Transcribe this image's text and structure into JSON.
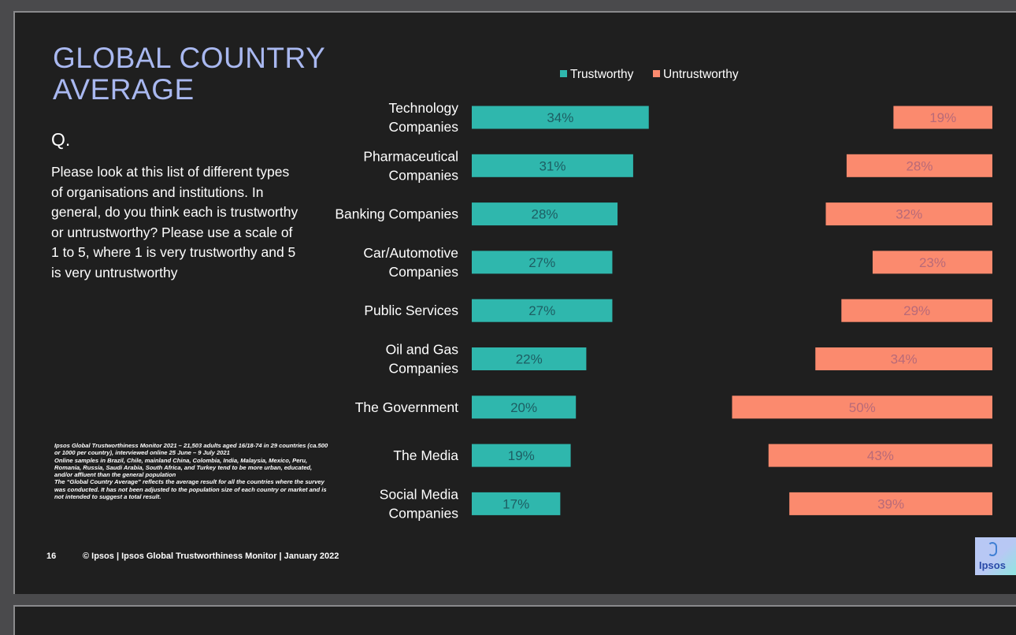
{
  "slide": {
    "title": "GLOBAL COUNTRY AVERAGE",
    "q_label": "Q.",
    "question": "Please look at this list of different types of organisations and institutions. In general, do you think each is trustworthy or untrustworthy?  Please use a scale of 1 to 5, where 1 is very trustworthy and 5 is very untrustworthy",
    "notes": [
      "Ipsos Global Trustworthiness Monitor 2021 – 21,503 adults aged 16/18-74 in 29 countries (ca.500 or 1000 per country), interviewed online 25 June – 9 July 2021",
      "Online samples in Brazil, Chile, mainland China, Colombia, India, Malaysia, Mexico, Peru, Romania, Russia, Saudi Arabia, South Africa, and Turkey tend to be more urban, educated, and/or affluent than the general population",
      "The “Global Country Average” reflects the average result for all the countries where the survey was conducted. It has not been adjusted to the population size of each country or market and is not intended to suggest a total result."
    ],
    "page_number": "16",
    "footer": "© Ipsos | Ipsos Global Trustworthiness Monitor | January 2022",
    "logo_text": "Ipsos"
  },
  "chart_data": {
    "type": "bar",
    "orientation": "horizontal",
    "title": "",
    "legend_position": "top",
    "categories": [
      [
        "Technology",
        "Companies"
      ],
      [
        "Pharmaceutical",
        "Companies"
      ],
      [
        "Banking Companies"
      ],
      [
        "Car/Automotive",
        "Companies"
      ],
      [
        "Public Services"
      ],
      [
        "Oil and Gas",
        "Companies"
      ],
      [
        "The Government"
      ],
      [
        "The Media"
      ],
      [
        "Social Media",
        "Companies"
      ]
    ],
    "series": [
      {
        "name": "Trustworthy",
        "color": "#2fb7ad",
        "values": [
          34,
          31,
          28,
          27,
          27,
          22,
          20,
          19,
          17
        ],
        "labels": [
          "34%",
          "31%",
          "28%",
          "27%",
          "27%",
          "22%",
          "20%",
          "19%",
          "17%"
        ],
        "anchor": "left"
      },
      {
        "name": "Untrustworthy",
        "color": "#fb8a6e",
        "values": [
          19,
          28,
          32,
          23,
          29,
          34,
          50,
          43,
          39
        ],
        "labels": [
          "19%",
          "28%",
          "32%",
          "23%",
          "29%",
          "34%",
          "50%",
          "43%",
          "39%"
        ],
        "anchor": "right"
      }
    ],
    "units": "%",
    "xlim": [
      0,
      100
    ]
  },
  "colors": {
    "title": "#a9b8f0",
    "label_text": "#ffffff",
    "trust_label": "#1d5e63",
    "untrust_label": "#b96a78"
  }
}
